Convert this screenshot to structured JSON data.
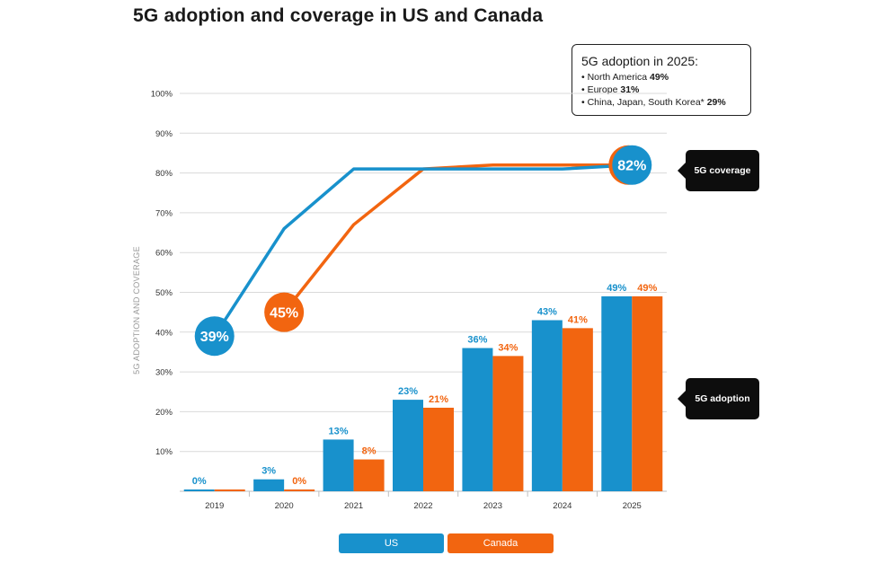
{
  "title": "5G adoption and coverage in US and Canada",
  "infobox": {
    "title": "5G adoption in 2025:",
    "items": [
      {
        "label": "North America",
        "value": "49%"
      },
      {
        "label": "Europe",
        "value": "31%"
      },
      {
        "label": "China, Japan, South Korea*",
        "value": "29%"
      }
    ]
  },
  "callouts": {
    "coverage": "5G coverage",
    "adoption": "5G adoption"
  },
  "legend": {
    "us": "US",
    "canada": "Canada"
  },
  "colors": {
    "us": "#1891cc",
    "canada": "#f26510",
    "grid": "#d9d9d9"
  },
  "chart_data": {
    "type": "bar",
    "title": "5G adoption and coverage in US and Canada",
    "ylabel": "5G ADOPTION AND COVERAGE",
    "xlabel": "",
    "ylim": [
      0,
      100
    ],
    "yticks": [
      "10%",
      "20%",
      "30%",
      "40%",
      "50%",
      "60%",
      "70%",
      "80%",
      "90%",
      "100%"
    ],
    "categories": [
      "2019",
      "2020",
      "2021",
      "2022",
      "2023",
      "2024",
      "2025"
    ],
    "series": [
      {
        "name": "US",
        "kind": "adoption",
        "values": [
          0,
          3,
          13,
          23,
          36,
          43,
          49
        ],
        "labels": [
          "0%",
          "3%",
          "13%",
          "23%",
          "36%",
          "43%",
          "49%"
        ]
      },
      {
        "name": "Canada",
        "kind": "adoption",
        "values": [
          0,
          0,
          8,
          21,
          34,
          41,
          49
        ],
        "labels": [
          "0%",
          "0%",
          "8%",
          "21%",
          "34%",
          "41%",
          "49%"
        ]
      },
      {
        "name": "US",
        "kind": "coverage",
        "values": [
          39,
          66,
          81,
          81,
          81,
          81,
          82
        ]
      },
      {
        "name": "Canada",
        "kind": "coverage",
        "values": [
          null,
          45,
          67,
          81,
          82,
          82,
          82
        ]
      }
    ],
    "coverage_bubbles": [
      {
        "series": "US",
        "category": "2019",
        "value": 39,
        "label": "39%"
      },
      {
        "series": "Canada",
        "category": "2020",
        "value": 45,
        "label": "45%"
      },
      {
        "series": "US",
        "category": "2025",
        "value": 82,
        "label": "82%"
      }
    ]
  }
}
